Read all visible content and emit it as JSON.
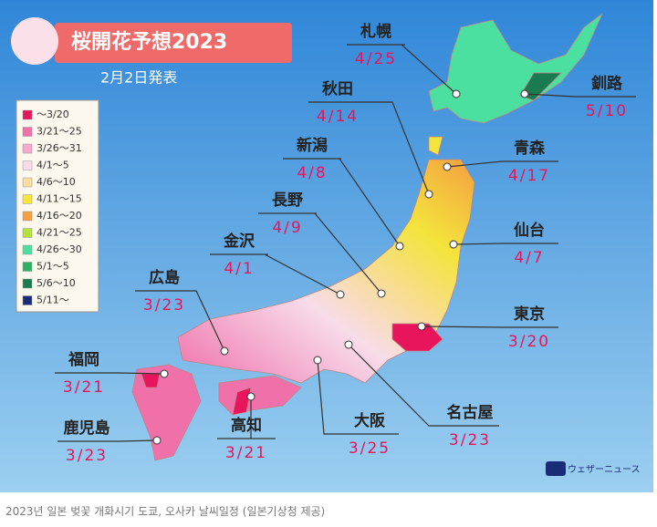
{
  "header": {
    "title": "桜開花予想2023",
    "date": "2月2日発表"
  },
  "legend": [
    {
      "label": "～3/20",
      "color": "#e8145c"
    },
    {
      "label": "3/21～25",
      "color": "#f070aa"
    },
    {
      "label": "3/26～31",
      "color": "#f4a8cc"
    },
    {
      "label": "4/1～5",
      "color": "#f8dcea"
    },
    {
      "label": "4/6～10",
      "color": "#f8dca0"
    },
    {
      "label": "4/11～15",
      "color": "#f4e43c"
    },
    {
      "label": "4/16～20",
      "color": "#f4a040"
    },
    {
      "label": "4/21～25",
      "color": "#b4e040"
    },
    {
      "label": "4/26～30",
      "color": "#4ce0a0"
    },
    {
      "label": "5/1～5",
      "color": "#2cb064"
    },
    {
      "label": "5/6～10",
      "color": "#1a7a50"
    },
    {
      "label": "5/11～",
      "color": "#1a2c78"
    }
  ],
  "cities": [
    {
      "name": "札幌",
      "date": "4/25"
    },
    {
      "name": "秋田",
      "date": "4/14"
    },
    {
      "name": "新潟",
      "date": "4/8"
    },
    {
      "name": "長野",
      "date": "4/9"
    },
    {
      "name": "金沢",
      "date": "4/1"
    },
    {
      "name": "広島",
      "date": "3/23"
    },
    {
      "name": "福岡",
      "date": "3/21"
    },
    {
      "name": "鹿児島",
      "date": "3/23"
    },
    {
      "name": "高知",
      "date": "3/21"
    },
    {
      "name": "大阪",
      "date": "3/25"
    },
    {
      "name": "名古屋",
      "date": "3/23"
    },
    {
      "name": "東京",
      "date": "3/20"
    },
    {
      "name": "仙台",
      "date": "4/7"
    },
    {
      "name": "青森",
      "date": "4/17"
    },
    {
      "name": "釧路",
      "date": "5/10"
    }
  ],
  "logo": "ウェザーニュース",
  "caption": "2023년 일본 벚꽃 개화시기 도쿄, 오사카 날씨일정 (일본기상청 제공)"
}
